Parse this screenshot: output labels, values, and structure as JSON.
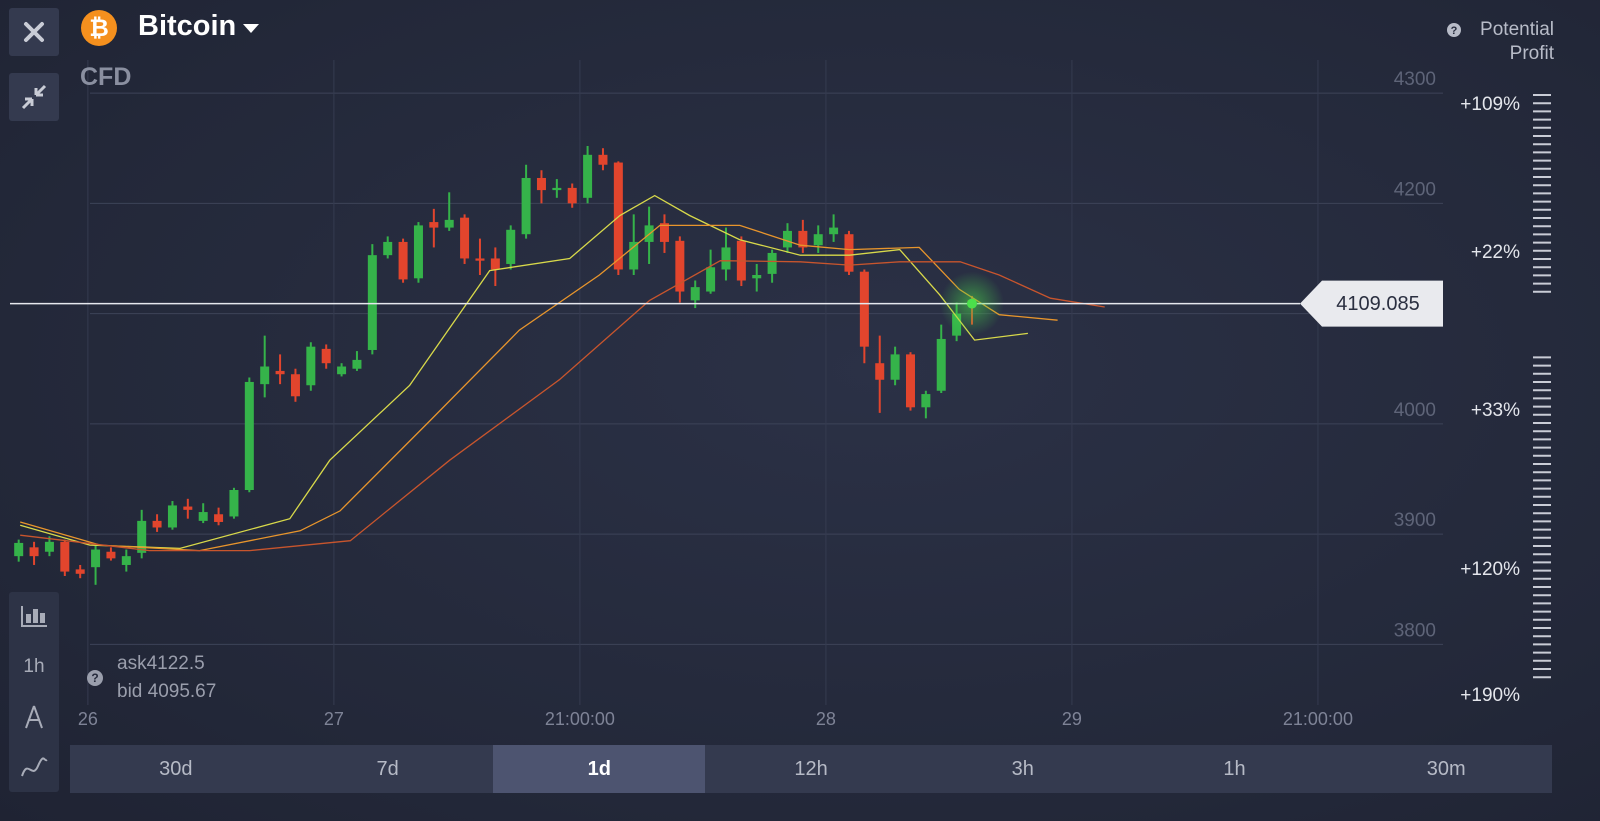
{
  "header": {
    "title": "Bitcoin",
    "subtitle": "CFD",
    "potential_profit": "Potential Profit"
  },
  "quote": {
    "ask": "ask4122.5",
    "bid": "bid 4095.67"
  },
  "sidebar": {
    "interval": "1h"
  },
  "timeframes": {
    "items": [
      "30d",
      "7d",
      "1d",
      "12h",
      "3h",
      "1h",
      "30m"
    ],
    "active": "1d"
  },
  "potential_profit_levels": [
    "+109%",
    "+22%",
    "+33%",
    "+120%",
    "+190%"
  ],
  "chart_data": {
    "type": "candlestick",
    "xlim": [
      -7.5,
      132.2
    ],
    "xticks": [
      {
        "value": 0,
        "label": "26"
      },
      {
        "value": 24,
        "label": "27"
      },
      {
        "value": 48,
        "label": "21:00:00"
      },
      {
        "value": 72,
        "label": "28"
      },
      {
        "value": 96,
        "label": "29"
      },
      {
        "value": 120,
        "label": "21:00:00"
      }
    ],
    "ylim": [
      3745,
      4330
    ],
    "yticks": [
      3800,
      3900,
      4000,
      4100,
      4200,
      4300
    ],
    "grid": true,
    "up_color": "#35b34a",
    "down_color": "#e2452d",
    "x": [
      -6.75,
      -5.25,
      -3.75,
      -2.25,
      -0.75,
      0.75,
      2.25,
      3.75,
      5.25,
      6.75,
      8.25,
      9.75,
      11.25,
      12.75,
      14.25,
      15.75,
      17.25,
      18.75,
      20.25,
      21.75,
      23.25,
      24.75,
      26.25,
      27.75,
      29.25,
      30.75,
      32.25,
      33.75,
      35.25,
      36.75,
      38.25,
      39.75,
      41.25,
      42.75,
      44.25,
      45.75,
      47.25,
      48.75,
      50.25,
      51.75,
      53.25,
      54.75,
      56.25,
      57.75,
      59.25,
      60.75,
      62.25,
      63.75,
      65.25,
      66.75,
      68.25,
      69.75,
      71.25,
      72.75,
      74.25,
      75.75,
      77.25,
      78.75,
      80.25,
      81.75,
      83.25,
      84.75,
      86.25
    ],
    "open": [
      3880,
      3888,
      3884,
      3893,
      3868,
      3870,
      3884,
      3872,
      3883,
      3912,
      3906,
      3925,
      3912,
      3918,
      3916,
      3940,
      4036,
      4048,
      4045,
      4035,
      4068,
      4045,
      4050,
      4067,
      4153,
      4165,
      4132,
      4183,
      4178,
      4187,
      4150,
      4150,
      4145,
      4172,
      4223,
      4212,
      4214,
      4205,
      4244,
      4237,
      4140,
      4165,
      4182,
      4166,
      4112,
      4120,
      4140,
      4166,
      4132,
      4136,
      4160,
      4175,
      4162,
      4172,
      4172,
      4138,
      4055,
      4040,
      4063,
      4015,
      4030,
      4080,
      4112
    ],
    "high": [
      3895,
      3893,
      3898,
      3895,
      3872,
      3890,
      3888,
      3886,
      3922,
      3918,
      3930,
      3932,
      3928,
      3924,
      3942,
      4042,
      4080,
      4063,
      4050,
      4074,
      4072,
      4055,
      4066,
      4163,
      4170,
      4168,
      4183,
      4195,
      4210,
      4190,
      4168,
      4160,
      4180,
      4235,
      4230,
      4222,
      4218,
      4252,
      4250,
      4238,
      4190,
      4197,
      4190,
      4170,
      4130,
      4158,
      4178,
      4170,
      4145,
      4158,
      4182,
      4185,
      4180,
      4190,
      4175,
      4140,
      4080,
      4070,
      4065,
      4030,
      4090,
      4110,
      4116
    ],
    "low": [
      3875,
      3872,
      3880,
      3862,
      3860,
      3854,
      3876,
      3866,
      3878,
      3902,
      3904,
      3914,
      3910,
      3908,
      3914,
      3938,
      4024,
      4036,
      4020,
      4030,
      4050,
      4043,
      4048,
      4063,
      4150,
      4128,
      4128,
      4160,
      4175,
      4145,
      4135,
      4125,
      4140,
      4168,
      4200,
      4205,
      4196,
      4200,
      4230,
      4135,
      4135,
      4145,
      4155,
      4110,
      4105,
      4118,
      4130,
      4125,
      4120,
      4128,
      4155,
      4155,
      4155,
      4165,
      4135,
      4055,
      4010,
      4035,
      4012,
      4005,
      4028,
      4075,
      4090
    ],
    "close": [
      3892,
      3880,
      3893,
      3866,
      3864,
      3886,
      3878,
      3880,
      3912,
      3906,
      3926,
      3922,
      3920,
      3911,
      3940,
      4038,
      4052,
      4045,
      4025,
      4070,
      4055,
      4052,
      4058,
      4153,
      4165,
      4131,
      4180,
      4178,
      4185,
      4150,
      4148,
      4140,
      4176,
      4223,
      4212,
      4214,
      4200,
      4244,
      4235,
      4140,
      4165,
      4180,
      4165,
      4120,
      4124,
      4142,
      4160,
      4130,
      4135,
      4155,
      4175,
      4160,
      4172,
      4178,
      4138,
      4070,
      4040,
      4063,
      4015,
      4027,
      4077,
      4100,
      4109
    ],
    "moving_averages": [
      {
        "color": "#d8d94a",
        "x": [
          -6.6,
          0.2,
          9,
          19.7,
          23.6,
          31.4,
          39.2,
          47,
          51.9,
          55.3,
          58.7,
          63.6,
          69.5,
          74.3,
          79.2,
          83.1,
          86.5,
          91.7
        ],
        "values": [
          3908,
          3890,
          3887,
          3914,
          3967,
          4035,
          4139,
          4150,
          4189,
          4207,
          4189,
          4167,
          4153,
          4153,
          4158,
          4117,
          4076,
          4082
        ]
      },
      {
        "color": "#e8952c",
        "x": [
          -6.6,
          1.2,
          10.9,
          20.7,
          24.6,
          33.4,
          42.1,
          49.9,
          55.8,
          63.6,
          69.5,
          74.3,
          81.1,
          85,
          88.9,
          94.6
        ],
        "values": [
          3911,
          3890,
          3885,
          3903,
          3921,
          4003,
          4085,
          4135,
          4180,
          4180,
          4162,
          4158,
          4160,
          4122,
          4099,
          4094
        ]
      },
      {
        "color": "#c8552d",
        "x": [
          -6.6,
          6,
          15.8,
          25.6,
          35.3,
          46,
          54.8,
          61.7,
          69.5,
          74.3,
          79.2,
          85.1,
          88.9,
          93.9,
          99.2
        ],
        "values": [
          3899,
          3885,
          3885,
          3894,
          3967,
          4040,
          4112,
          4148,
          4147,
          4144,
          4147,
          4147,
          4135,
          4114,
          4106
        ]
      }
    ],
    "current_price": 4109.085
  }
}
